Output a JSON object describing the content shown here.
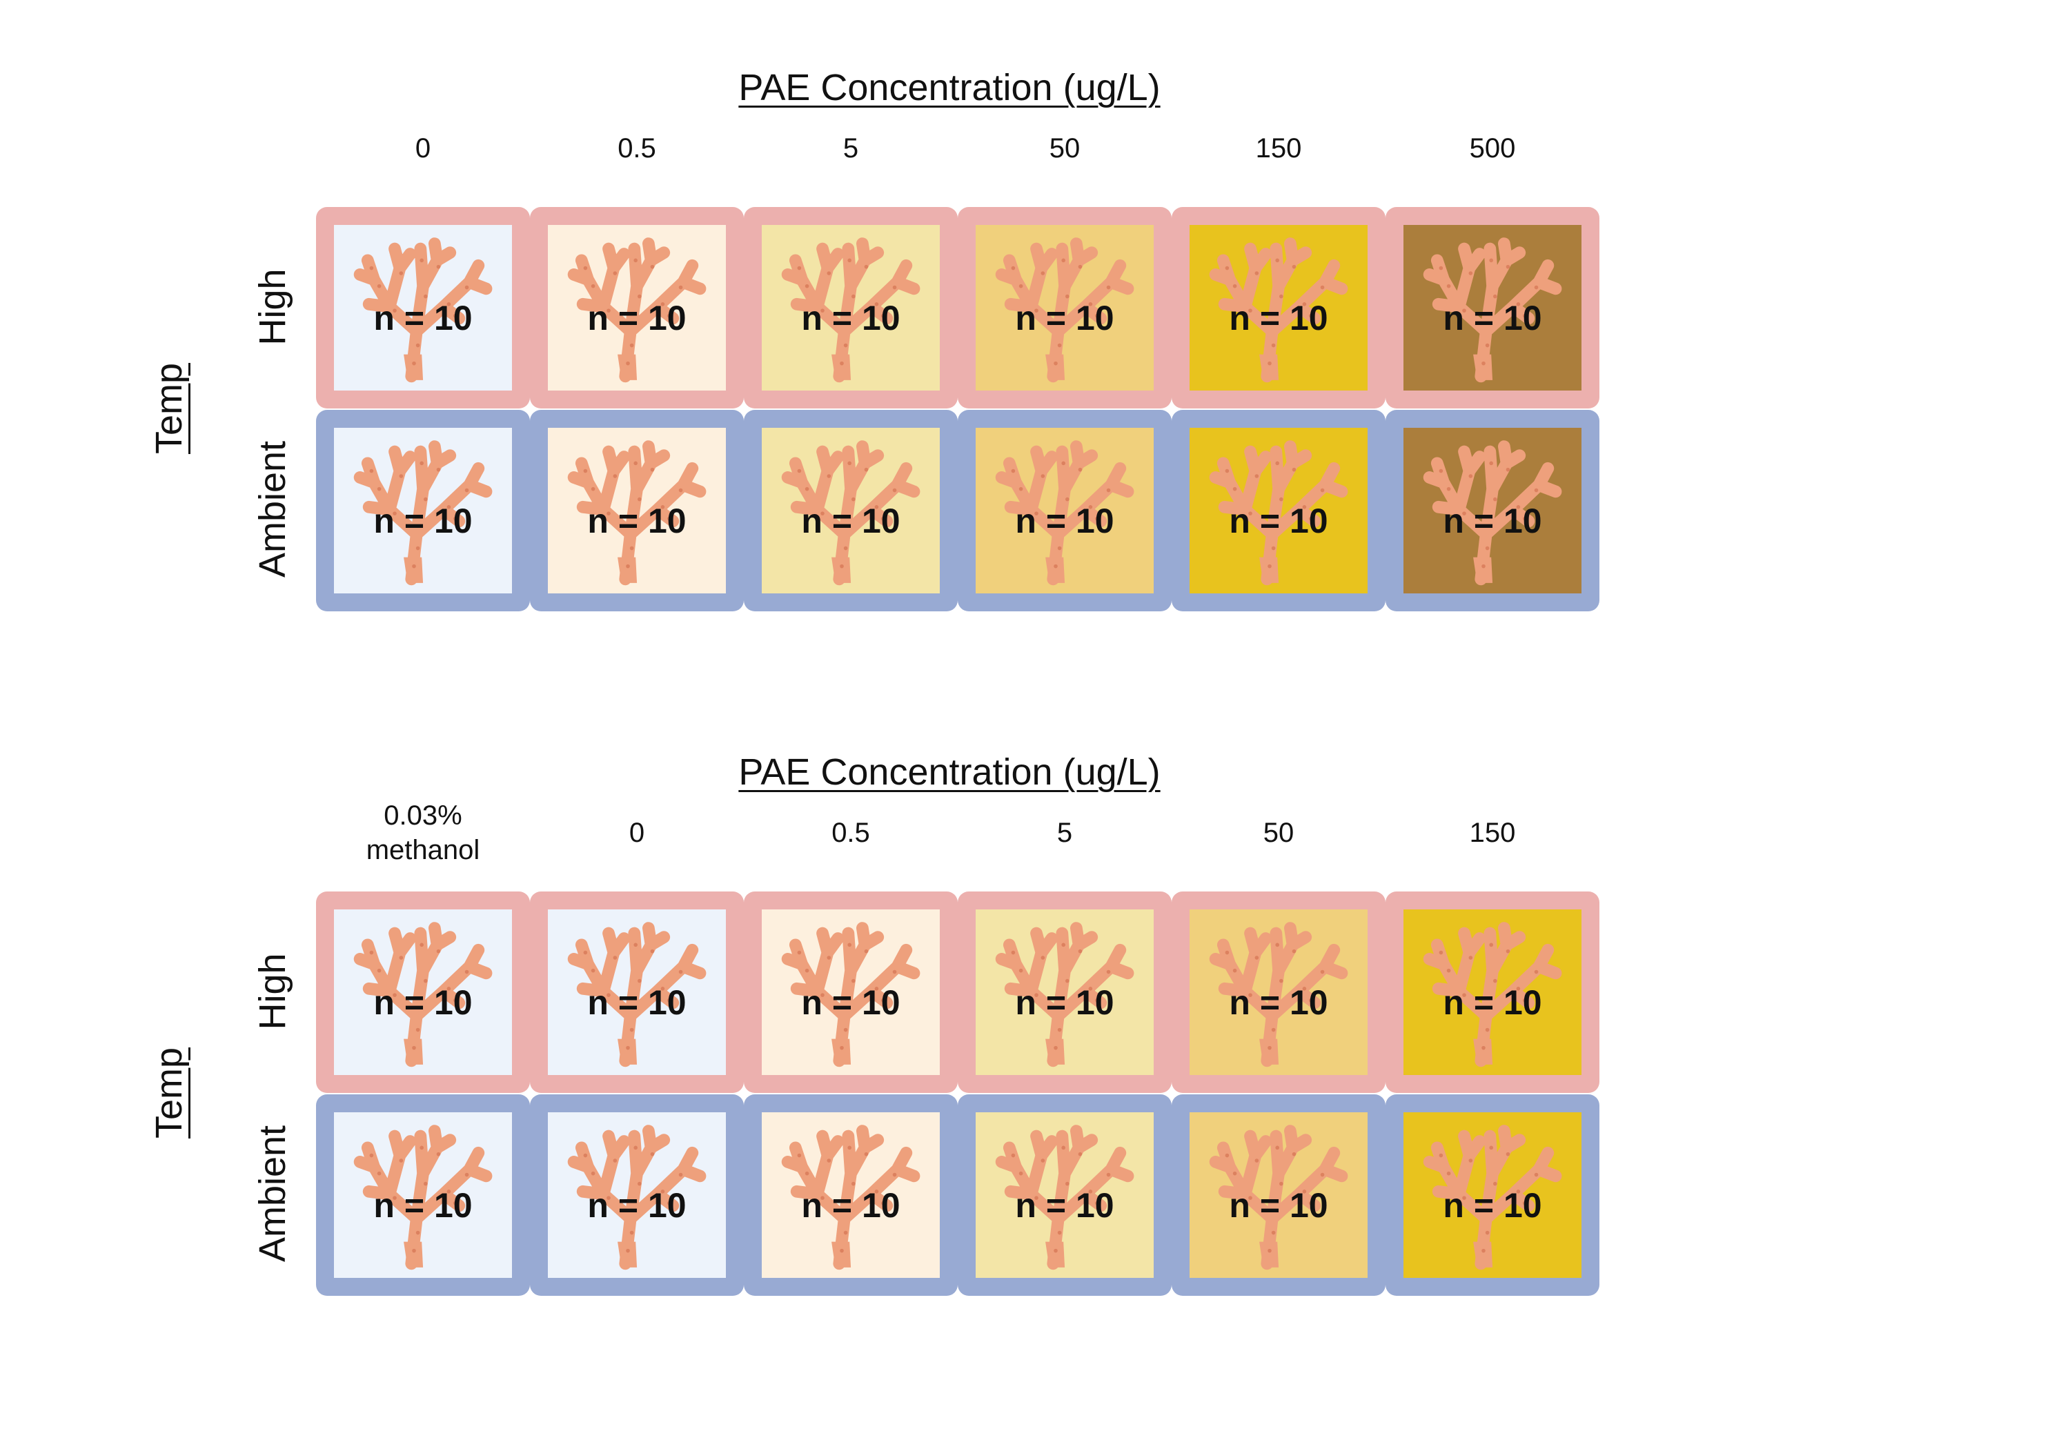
{
  "colors": {
    "high_border": "#ecb0ae",
    "ambient_border": "#98aad3",
    "coral_fill": "#eea07c",
    "coral_spot": "#d97c5a"
  },
  "icons": {
    "cell_icon": "coral-icon"
  },
  "panels": [
    {
      "axis_title": "PAE Concentration (ug/L)",
      "temp_label": "Temp",
      "row_labels": [
        "High",
        "Ambient"
      ],
      "columns": [
        {
          "label": "0",
          "fill": "#edf3fb"
        },
        {
          "label": "0.5",
          "fill": "#fdf0de"
        },
        {
          "label": "5",
          "fill": "#f3e5a7"
        },
        {
          "label": "50",
          "fill": "#f0d07c"
        },
        {
          "label": "150",
          "fill": "#e8c31e"
        },
        {
          "label": "500",
          "fill": "#ab7e3c"
        }
      ],
      "cells": [
        [
          "n = 10",
          "n = 10",
          "n = 10",
          "n = 10",
          "n = 10",
          "n = 10"
        ],
        [
          "n = 10",
          "n = 10",
          "n = 10",
          "n = 10",
          "n = 10",
          "n = 10"
        ]
      ]
    },
    {
      "axis_title": "PAE Concentration (ug/L)",
      "temp_label": "Temp",
      "row_labels": [
        "High",
        "Ambient"
      ],
      "columns": [
        {
          "label": "0.03%\nmethanol",
          "fill": "#edf3fb"
        },
        {
          "label": "0",
          "fill": "#edf3fb"
        },
        {
          "label": "0.5",
          "fill": "#fdf0de"
        },
        {
          "label": "5",
          "fill": "#f3e5a7"
        },
        {
          "label": "50",
          "fill": "#f0d07c"
        },
        {
          "label": "150",
          "fill": "#e8c31e"
        }
      ],
      "cells": [
        [
          "n = 10",
          "n = 10",
          "n = 10",
          "n = 10",
          "n = 10",
          "n = 10"
        ],
        [
          "n = 10",
          "n = 10",
          "n = 10",
          "n = 10",
          "n = 10",
          "n = 10"
        ]
      ]
    }
  ]
}
